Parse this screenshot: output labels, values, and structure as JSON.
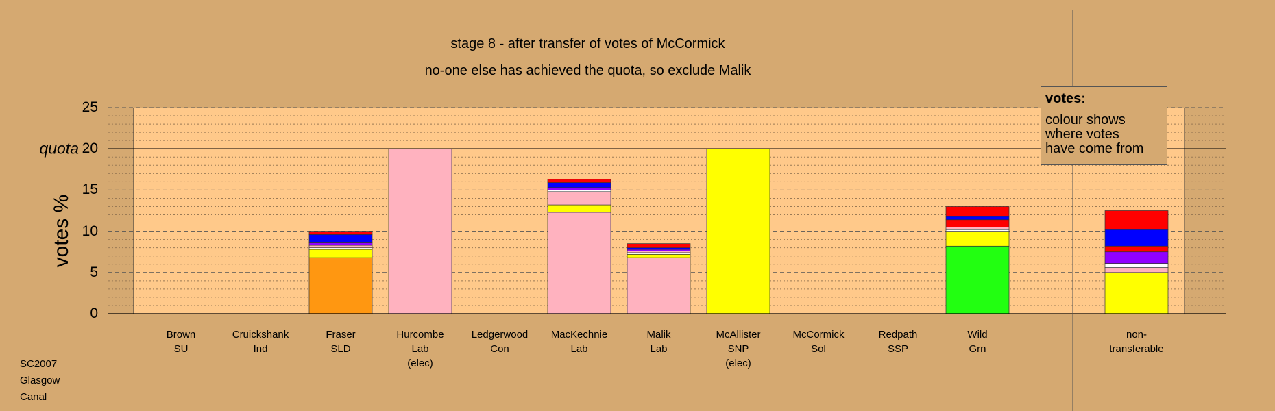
{
  "chart_data": {
    "type": "bar",
    "stacked": true,
    "title": "stage 8 - after transfer of votes of McCormick",
    "subtitle": "no-one else has achieved the quota, so exclude Malik",
    "ylabel": "votes %",
    "ylim": [
      0,
      25
    ],
    "yticks": [
      0,
      5,
      10,
      15,
      20,
      25
    ],
    "quota": 20,
    "quota_label": "quota",
    "grid": true,
    "candidates": [
      {
        "name": "Brown",
        "party": "SU",
        "note": "",
        "segments": []
      },
      {
        "name": "Cruickshank",
        "party": "Ind",
        "note": "",
        "segments": []
      },
      {
        "name": "Fraser",
        "party": "SLD",
        "note": "",
        "segments": [
          {
            "color": "#FF9711",
            "value": 6.8
          },
          {
            "color": "#FFFF00",
            "value": 1.0
          },
          {
            "color": "#FFFFFF",
            "value": 0.2
          },
          {
            "color": "#FFB2BF",
            "value": 0.3
          },
          {
            "color": "#9000FF",
            "value": 0.3
          },
          {
            "color": "#0000FF",
            "value": 1.0
          },
          {
            "color": "#FF0000",
            "value": 0.4
          }
        ]
      },
      {
        "name": "Hurcombe",
        "party": "Lab",
        "note": "(elec)",
        "segments": [
          {
            "color": "#FFB2BF",
            "value": 20.0
          }
        ]
      },
      {
        "name": "Ledgerwood",
        "party": "Con",
        "note": "",
        "segments": []
      },
      {
        "name": "MacKechnie",
        "party": "Lab",
        "note": "",
        "segments": [
          {
            "color": "#FFB2BF",
            "value": 12.3
          },
          {
            "color": "#FFFF00",
            "value": 0.9
          },
          {
            "color": "#FFB2BF",
            "value": 1.6
          },
          {
            "color": "#FFFFFF",
            "value": 0.2
          },
          {
            "color": "#9000FF",
            "value": 0.3
          },
          {
            "color": "#0000FF",
            "value": 0.6
          },
          {
            "color": "#FF0000",
            "value": 0.4
          }
        ]
      },
      {
        "name": "Malik",
        "party": "Lab",
        "note": "",
        "segments": [
          {
            "color": "#FFB2BF",
            "value": 6.8
          },
          {
            "color": "#FFFF00",
            "value": 0.4
          },
          {
            "color": "#FFFFFF",
            "value": 0.2
          },
          {
            "color": "#FFB2BF",
            "value": 0.2
          },
          {
            "color": "#9000FF",
            "value": 0.2
          },
          {
            "color": "#0000FF",
            "value": 0.2
          },
          {
            "color": "#FF0000",
            "value": 0.5
          }
        ]
      },
      {
        "name": "McAllister",
        "party": "SNP",
        "note": "(elec)",
        "segments": [
          {
            "color": "#FFFF00",
            "value": 20.0
          }
        ]
      },
      {
        "name": "McCormick",
        "party": "Sol",
        "note": "",
        "segments": []
      },
      {
        "name": "Redpath",
        "party": "SSP",
        "note": "",
        "segments": []
      },
      {
        "name": "Wild",
        "party": "Grn",
        "note": "",
        "segments": [
          {
            "color": "#22FF11",
            "value": 8.2
          },
          {
            "color": "#FFFF00",
            "value": 1.8
          },
          {
            "color": "#FFFFFF",
            "value": 0.2
          },
          {
            "color": "#FFB2BF",
            "value": 0.3
          },
          {
            "color": "#FF0000",
            "value": 0.9
          },
          {
            "color": "#0000FF",
            "value": 0.4
          },
          {
            "color": "#FF0000",
            "value": 1.2
          }
        ]
      }
    ],
    "nontransferable": {
      "label_line1": "non-",
      "label_line2": "transferable",
      "segments": [
        {
          "color": "#FFFF00",
          "value": 5.0
        },
        {
          "color": "#FFB2BF",
          "value": 0.6
        },
        {
          "color": "#FFFFFF",
          "value": 0.5
        },
        {
          "color": "#9000FF",
          "value": 1.4
        },
        {
          "color": "#FF0000",
          "value": 0.7
        },
        {
          "color": "#0000FF",
          "value": 2.0
        },
        {
          "color": "#FF0000",
          "value": 2.3
        }
      ]
    }
  },
  "legend": {
    "title": "votes:",
    "body": "colour shows\nwhere votes\nhave come from"
  },
  "footer": {
    "line1": "SC2007",
    "line2": "Glasgow",
    "line3": "Canal"
  },
  "colors": {
    "background": "#D5A971",
    "plot_background": "#FFC98A"
  }
}
